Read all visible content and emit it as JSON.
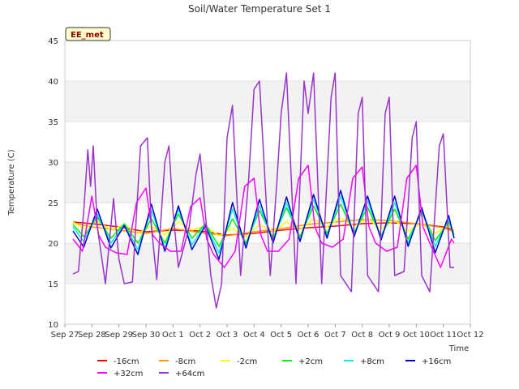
{
  "chart_data": {
    "type": "line",
    "title": "Soil/Water Temperature Set 1",
    "site_label": "EE_met",
    "xlabel": "Time",
    "ylabel": "Temperature (C)",
    "ylim": [
      10,
      45
    ],
    "yticks": [
      10,
      15,
      20,
      25,
      30,
      35,
      40,
      45
    ],
    "xlim_days": [
      0,
      15
    ],
    "xticks": [
      "Sep 27",
      "Sep 28",
      "Sep 29",
      "Sep 30",
      "Oct 1",
      "Oct 2",
      "Oct 3",
      "Oct 4",
      "Oct 5",
      "Oct 6",
      "Oct 7",
      "Oct 8",
      "Oct 9",
      "Oct 10",
      "Oct 11",
      "Oct 12"
    ],
    "grid": "horizontal bands",
    "legend_position": "bottom",
    "series": [
      {
        "name": "-16cm",
        "color": "#ff0000",
        "x": [
          0.3,
          1.0,
          2.0,
          3.0,
          4.0,
          5.0,
          6.0,
          7.0,
          8.0,
          9.0,
          10.0,
          11.0,
          12.0,
          13.0,
          14.0,
          14.4
        ],
        "y": [
          22.6,
          22.4,
          22.0,
          21.4,
          21.6,
          21.5,
          21.0,
          21.2,
          21.6,
          21.9,
          22.1,
          22.4,
          22.5,
          22.4,
          22.0,
          21.6
        ]
      },
      {
        "name": "-8cm",
        "color": "#ff9900",
        "x": [
          0.3,
          1.0,
          2.0,
          3.0,
          4.0,
          5.0,
          6.0,
          7.0,
          8.0,
          9.0,
          10.0,
          11.0,
          12.0,
          13.0,
          14.0,
          14.4
        ],
        "y": [
          22.5,
          22.0,
          21.6,
          21.2,
          21.8,
          21.3,
          20.9,
          21.4,
          21.8,
          22.3,
          22.6,
          22.9,
          22.8,
          22.4,
          21.9,
          21.4
        ]
      },
      {
        "name": "-2cm",
        "color": "#ffff00",
        "x": [
          0.3,
          0.7,
          1.2,
          1.7,
          2.2,
          2.7,
          3.2,
          3.7,
          4.2,
          4.7,
          5.2,
          5.7,
          6.2,
          6.7,
          7.2,
          7.7,
          8.2,
          8.7,
          9.2,
          9.7,
          10.2,
          10.7,
          11.2,
          11.7,
          12.2,
          12.7,
          13.2,
          13.7,
          14.2,
          14.4
        ],
        "y": [
          22.6,
          21.8,
          22.7,
          21.6,
          22.3,
          21.2,
          22.1,
          21.0,
          22.6,
          21.6,
          22.1,
          20.9,
          21.8,
          20.8,
          22.3,
          21.4,
          22.6,
          21.7,
          23.0,
          22.0,
          23.1,
          22.1,
          23.0,
          21.8,
          22.8,
          21.5,
          22.4,
          21.2,
          22.2,
          21.5
        ]
      },
      {
        "name": "+2cm",
        "color": "#00ee00",
        "x": [
          0.3,
          0.7,
          1.2,
          1.7,
          2.2,
          2.7,
          3.2,
          3.7,
          4.2,
          4.7,
          5.2,
          5.7,
          6.2,
          6.7,
          7.2,
          7.7,
          8.2,
          8.7,
          9.2,
          9.7,
          10.2,
          10.7,
          11.2,
          11.7,
          12.2,
          12.7,
          13.2,
          13.7,
          14.2,
          14.4
        ],
        "y": [
          22.3,
          20.8,
          23.2,
          20.6,
          22.4,
          20.0,
          23.0,
          20.0,
          23.6,
          20.6,
          22.4,
          19.6,
          23.0,
          20.0,
          24.0,
          20.6,
          24.4,
          20.8,
          24.6,
          21.2,
          24.8,
          21.3,
          24.4,
          20.9,
          24.2,
          20.5,
          23.8,
          20.3,
          22.6,
          21.0
        ]
      },
      {
        "name": "+8cm",
        "color": "#00eeee",
        "x": [
          0.3,
          0.7,
          1.2,
          1.7,
          2.2,
          2.7,
          3.2,
          3.7,
          4.2,
          4.7,
          5.2,
          5.7,
          6.2,
          6.7,
          7.2,
          7.7,
          8.2,
          8.7,
          9.2,
          9.7,
          10.2,
          10.7,
          11.2,
          11.7,
          12.2,
          12.7,
          13.2,
          13.7,
          14.2,
          14.4
        ],
        "y": [
          22.0,
          20.2,
          23.6,
          20.0,
          22.3,
          19.2,
          24.0,
          19.4,
          24.2,
          19.8,
          22.3,
          18.8,
          24.2,
          19.6,
          24.6,
          20.2,
          25.0,
          20.4,
          25.4,
          20.8,
          25.8,
          21.0,
          25.2,
          20.6,
          25.0,
          20.0,
          24.2,
          19.6,
          23.0,
          20.6
        ]
      },
      {
        "name": "+16cm",
        "color": "#0000cc",
        "x": [
          0.3,
          0.7,
          1.2,
          1.7,
          2.2,
          2.7,
          3.2,
          3.7,
          4.2,
          4.7,
          5.2,
          5.7,
          6.2,
          6.7,
          7.2,
          7.7,
          8.2,
          8.7,
          9.2,
          9.7,
          10.2,
          10.7,
          11.2,
          11.7,
          12.2,
          12.7,
          13.2,
          13.7,
          14.2,
          14.4
        ],
        "y": [
          21.5,
          19.5,
          24.2,
          19.4,
          22.2,
          18.6,
          24.8,
          19.0,
          24.6,
          19.2,
          22.2,
          18.0,
          25.0,
          19.4,
          25.4,
          20.0,
          25.7,
          20.2,
          26.0,
          20.6,
          26.5,
          20.8,
          25.8,
          20.4,
          25.8,
          19.6,
          24.4,
          18.8,
          23.4,
          20.6
        ]
      },
      {
        "name": "+32cm",
        "color": "#ff00ff",
        "x": [
          0.3,
          0.65,
          1.0,
          1.25,
          1.5,
          1.9,
          2.3,
          2.65,
          3.0,
          3.25,
          3.5,
          3.9,
          4.3,
          4.65,
          5.0,
          5.25,
          5.5,
          5.9,
          6.3,
          6.65,
          7.0,
          7.25,
          7.5,
          7.9,
          8.3,
          8.65,
          9.0,
          9.25,
          9.5,
          9.9,
          10.3,
          10.65,
          11.0,
          11.25,
          11.5,
          11.9,
          12.3,
          12.65,
          13.0,
          13.25,
          13.5,
          13.9,
          14.3,
          14.4
        ],
        "y": [
          20.5,
          19.0,
          25.8,
          21.0,
          19.5,
          18.8,
          18.6,
          25.0,
          26.8,
          21.0,
          20.0,
          19.0,
          19.0,
          24.5,
          25.6,
          20.5,
          18.6,
          17.0,
          19.0,
          27.0,
          28.0,
          21.0,
          19.0,
          19.0,
          20.5,
          28.0,
          29.6,
          22.0,
          20.0,
          19.5,
          20.5,
          28.0,
          29.4,
          22.0,
          20.0,
          19.0,
          19.5,
          28.0,
          29.6,
          22.0,
          20.0,
          17.0,
          20.5,
          20.0
        ]
      },
      {
        "name": "+64cm",
        "color": "#9933cc",
        "x": [
          0.3,
          0.5,
          0.7,
          0.85,
          0.95,
          1.05,
          1.2,
          1.5,
          1.8,
          2.0,
          2.2,
          2.5,
          2.8,
          3.05,
          3.2,
          3.4,
          3.7,
          3.85,
          4.0,
          4.2,
          4.6,
          4.85,
          5.0,
          5.4,
          5.6,
          5.8,
          6.0,
          6.2,
          6.5,
          6.8,
          7.0,
          7.2,
          7.6,
          7.85,
          8.0,
          8.2,
          8.55,
          8.85,
          9.0,
          9.2,
          9.5,
          9.85,
          10.0,
          10.2,
          10.6,
          10.85,
          11.0,
          11.2,
          11.6,
          11.85,
          12.0,
          12.2,
          12.55,
          12.85,
          13.0,
          13.2,
          13.5,
          13.85,
          14.0,
          14.25,
          14.4
        ],
        "y": [
          16.2,
          16.5,
          24.0,
          31.5,
          27.0,
          32.0,
          22.0,
          15.0,
          25.5,
          18.0,
          15.0,
          15.2,
          32.0,
          33.0,
          22.0,
          15.5,
          30.0,
          32.0,
          24.0,
          17.0,
          22.0,
          28.5,
          31.0,
          16.0,
          12.0,
          15.0,
          33.0,
          37.0,
          16.0,
          28.0,
          39.0,
          40.0,
          16.0,
          28.0,
          36.0,
          41.0,
          15.0,
          40.0,
          36.0,
          41.0,
          15.0,
          38.0,
          41.0,
          16.0,
          14.0,
          36.0,
          38.0,
          16.0,
          14.0,
          36.0,
          38.0,
          16.0,
          16.5,
          33.0,
          35.0,
          16.0,
          14.0,
          32.0,
          33.5,
          17.0,
          17.0
        ]
      }
    ]
  }
}
